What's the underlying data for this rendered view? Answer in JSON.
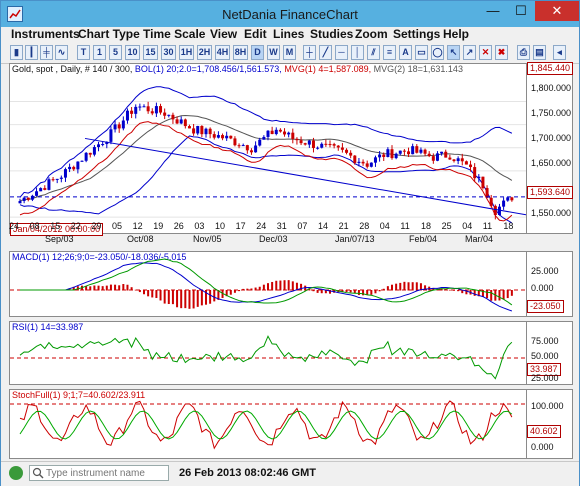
{
  "window": {
    "title": "NetDania FinanceChart",
    "min": "—",
    "max": "☐",
    "close": "✕"
  },
  "menu": [
    "Instruments",
    "Chart Type",
    "Time Scale",
    "View",
    "Edit",
    "Lines",
    "Studies",
    "Zoom",
    "Settings",
    "Help"
  ],
  "toolbar": {
    "periods": [
      "T",
      "1",
      "5",
      "10",
      "15",
      "30",
      "1H",
      "2H",
      "4H",
      "8H",
      "D",
      "W",
      "M"
    ],
    "selected_period": "D"
  },
  "price_pane": {
    "header": {
      "instrument": "Gold, spot , Daily, # 140 / 300,",
      "bol": "BOL(1) 20;2.0=1,708.456/1,561.573,",
      "mvg1": "MVG(1) 4=1,587.089,",
      "mvg2": "MVG(2) 18=1,631.143"
    },
    "y_ticks": [
      "1,845.440",
      "1,800.000",
      "1,750.000",
      "1,700.000",
      "1,650.000",
      "1,600.000",
      "1,550.000"
    ],
    "last_price": "1,593.640",
    "cursor_date": "Jan/04/2012 00:00:00",
    "x_ticks_day": [
      "24",
      "08",
      "15",
      "22",
      "29",
      "05",
      "12",
      "19",
      "26",
      "03",
      "10",
      "17",
      "24",
      "31",
      "07",
      "14",
      "21",
      "28",
      "04",
      "11",
      "18",
      "25",
      "04",
      "11",
      "18"
    ],
    "x_ticks_month": [
      "Sep/03",
      "Oct/08",
      "Nov/05",
      "Dec/03",
      "Jan/07/13",
      "Feb/04",
      "Mar/04"
    ]
  },
  "macd_pane": {
    "header": "MACD(1) 12;26;9;0=-23.050/-18.036/-5.015",
    "y_ticks": [
      "25.000",
      "0.000",
      "-25.000"
    ],
    "last_value": "-23.050"
  },
  "rsi_pane": {
    "header": "RSI(1) 14=33.987",
    "y_ticks": [
      "75.000",
      "50.000",
      "25.000"
    ],
    "last_value": "33.987"
  },
  "stoch_pane": {
    "header": "StochFull(1) 9;1;7=40.602/23.911",
    "y_ticks": [
      "100.000",
      "50.000",
      "0.000"
    ],
    "last_value": "40.602"
  },
  "status": {
    "search_placeholder": "Type instrument name",
    "timestamp": "26 Feb 2013 08:02:46 GMT"
  },
  "colors": {
    "title_bar": "#56b0e0",
    "candle_up": "#0000cc",
    "candle_down": "#cc0000",
    "bollinger": "#0000cc",
    "mvg1": "#cc0000",
    "mvg2": "#555555"
  }
}
